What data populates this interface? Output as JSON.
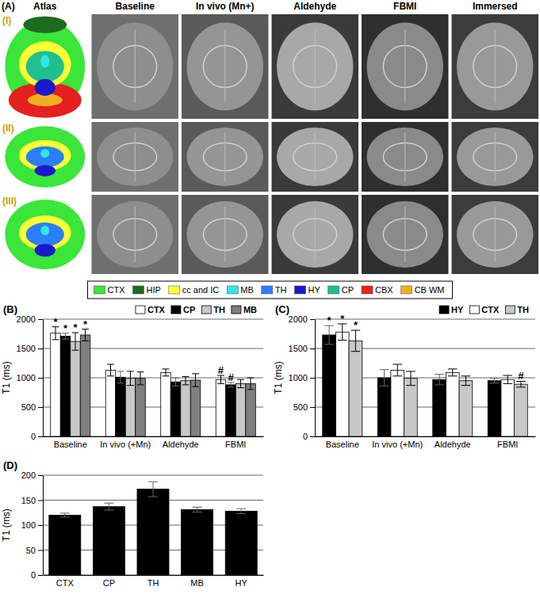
{
  "panel_a": {
    "label": "(A)",
    "columns": [
      "Atlas",
      "Baseline",
      "In vivo (Mn+)",
      "Aldehyde",
      "FBMI",
      "Immersed"
    ],
    "rows": [
      "(I)",
      "(II)",
      "(III)"
    ]
  },
  "atlas_legend": [
    {
      "name": "CTX",
      "color": "#39e639"
    },
    {
      "name": "HIP",
      "color": "#1e6b1e"
    },
    {
      "name": "cc and IC",
      "color": "#ffff33"
    },
    {
      "name": "MB",
      "color": "#33e6e6"
    },
    {
      "name": "TH",
      "color": "#2a7fff"
    },
    {
      "name": "HY",
      "color": "#1a1acc"
    },
    {
      "name": "CP",
      "color": "#1fbf8f"
    },
    {
      "name": "CBX",
      "color": "#e62020"
    },
    {
      "name": "CB WM",
      "color": "#f0b020"
    }
  ],
  "chart_data": [
    {
      "type": "bar",
      "title": "(B)",
      "ylabel": "T1 (ms)",
      "categories": [
        "Baseline",
        "In vivo (+Mn)",
        "Aldehyde",
        "FBMI"
      ],
      "ylim": [
        0,
        2000
      ],
      "yticks": [
        0,
        500,
        1000,
        1500,
        2000
      ],
      "grid": true,
      "legend": "upper right",
      "series": [
        {
          "name": "CTX",
          "color": "#ffffff",
          "values": [
            1760,
            1130,
            1090,
            970
          ],
          "errors": [
            110,
            100,
            60,
            70
          ],
          "annotations": [
            "*",
            null,
            null,
            "#"
          ]
        },
        {
          "name": "CP",
          "color": "#000000",
          "values": [
            1710,
            1010,
            930,
            880
          ],
          "errors": [
            50,
            100,
            70,
            40
          ],
          "annotations": [
            "*",
            null,
            null,
            "#"
          ]
        },
        {
          "name": "TH",
          "color": "#c8c8c8",
          "values": [
            1620,
            990,
            950,
            900
          ],
          "errors": [
            150,
            120,
            70,
            70
          ],
          "annotations": [
            "*",
            null,
            null,
            null
          ]
        },
        {
          "name": "MB",
          "color": "#7f7f7f",
          "values": [
            1730,
            990,
            960,
            900
          ],
          "errors": [
            100,
            110,
            110,
            100
          ],
          "annotations": [
            "*",
            null,
            null,
            null
          ]
        }
      ]
    },
    {
      "type": "bar",
      "title": "(C)",
      "ylabel": "T1 (ms)",
      "categories": [
        "Baseline",
        "In vivo (+Mn)",
        "Aldehyde",
        "FBMI"
      ],
      "ylim": [
        0,
        2000
      ],
      "yticks": [
        0,
        500,
        1000,
        1500,
        2000
      ],
      "grid": true,
      "legend": "upper right",
      "series": [
        {
          "name": "HY",
          "color": "#000000",
          "values": [
            1730,
            1000,
            970,
            950
          ],
          "errors": [
            160,
            140,
            90,
            40
          ],
          "annotations": [
            "*",
            null,
            null,
            null
          ]
        },
        {
          "name": "CTX",
          "color": "#ffffff",
          "values": [
            1780,
            1130,
            1090,
            970
          ],
          "errors": [
            140,
            100,
            60,
            70
          ],
          "annotations": [
            "*",
            null,
            null,
            null
          ]
        },
        {
          "name": "TH",
          "color": "#c8c8c8",
          "values": [
            1630,
            990,
            950,
            890
          ],
          "errors": [
            180,
            120,
            80,
            50
          ],
          "annotations": [
            "*",
            null,
            null,
            "#"
          ]
        }
      ]
    },
    {
      "type": "bar",
      "title": "(D)",
      "ylabel": "T1 (ms)",
      "categories": [
        "CTX",
        "CP",
        "TH",
        "MB",
        "HY"
      ],
      "ylim": [
        0,
        200
      ],
      "yticks": [
        0,
        50,
        100,
        150,
        200
      ],
      "grid": true,
      "series": [
        {
          "color": "#000000",
          "values": [
            120,
            137,
            172,
            131,
            128
          ],
          "errors": [
            4,
            7,
            15,
            5,
            5
          ]
        }
      ]
    }
  ]
}
